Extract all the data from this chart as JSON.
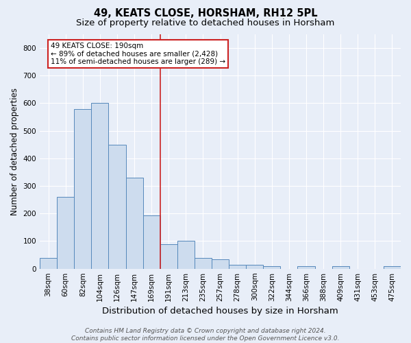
{
  "title1": "49, KEATS CLOSE, HORSHAM, RH12 5PL",
  "title2": "Size of property relative to detached houses in Horsham",
  "xlabel": "Distribution of detached houses by size in Horsham",
  "ylabel": "Number of detached properties",
  "categories": [
    "38sqm",
    "60sqm",
    "82sqm",
    "104sqm",
    "126sqm",
    "147sqm",
    "169sqm",
    "191sqm",
    "213sqm",
    "235sqm",
    "257sqm",
    "278sqm",
    "300sqm",
    "322sqm",
    "344sqm",
    "366sqm",
    "388sqm",
    "409sqm",
    "431sqm",
    "453sqm",
    "475sqm"
  ],
  "values": [
    40,
    260,
    580,
    600,
    450,
    330,
    193,
    90,
    100,
    38,
    33,
    15,
    15,
    10,
    0,
    8,
    0,
    8,
    0,
    0,
    8
  ],
  "bar_color": "#cddcee",
  "bar_edge_color": "#5588bb",
  "vline_color": "#cc2222",
  "annotation_box_text": "49 KEATS CLOSE: 190sqm\n← 89% of detached houses are smaller (2,428)\n11% of semi-detached houses are larger (289) →",
  "annotation_box_color": "#ffffff",
  "annotation_box_edge_color": "#cc2222",
  "background_color": "#e8eef8",
  "ylim": [
    0,
    850
  ],
  "yticks": [
    0,
    100,
    200,
    300,
    400,
    500,
    600,
    700,
    800
  ],
  "footer_line1": "Contains HM Land Registry data © Crown copyright and database right 2024.",
  "footer_line2": "Contains public sector information licensed under the Open Government Licence v3.0.",
  "title1_fontsize": 10.5,
  "title2_fontsize": 9.5,
  "xlabel_fontsize": 9.5,
  "ylabel_fontsize": 8.5,
  "tick_fontsize": 7.5,
  "annotation_fontsize": 7.5,
  "footer_fontsize": 6.5,
  "vline_index": 7
}
